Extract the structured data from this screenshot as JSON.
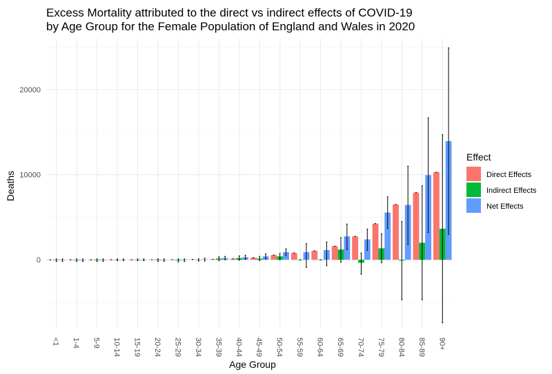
{
  "chart_data": {
    "type": "bar",
    "title_lines": [
      "Excess Mortality attributed to the direct vs indirect effects of COVID-19",
      "by Age Group for the Female Population of England and Wales in 2020"
    ],
    "xlabel": "Age Group",
    "ylabel": "Deaths",
    "ylim": [
      -8000,
      26000
    ],
    "yticks": [
      0,
      10000,
      20000
    ],
    "grid": true,
    "legend_title": "Effect",
    "legend_position": "right",
    "categories": [
      "<1",
      "1-4",
      "5-9",
      "10-14",
      "15-19",
      "20-24",
      "25-29",
      "30-34",
      "35-39",
      "40-44",
      "45-49",
      "50-54",
      "55-59",
      "60-64",
      "65-69",
      "70-74",
      "75-79",
      "80-84",
      "85-89",
      "90+"
    ],
    "series": [
      {
        "name": "Direct Effects",
        "color": "#F8766D",
        "values": [
          0,
          0,
          0,
          0,
          3,
          10,
          20,
          40,
          60,
          120,
          250,
          550,
          800,
          1050,
          1600,
          2750,
          4250,
          6500,
          7900,
          10300
        ],
        "error_low": [
          0,
          0,
          0,
          0,
          3,
          10,
          20,
          40,
          60,
          120,
          250,
          550,
          800,
          1050,
          1600,
          2750,
          4250,
          6500,
          7900,
          10300
        ],
        "error_high": [
          0,
          0,
          0,
          0,
          3,
          10,
          20,
          40,
          60,
          120,
          250,
          550,
          800,
          1050,
          1600,
          2750,
          4250,
          6500,
          7900,
          10300
        ]
      },
      {
        "name": "Indirect Effects",
        "color": "#00BA38",
        "values": [
          -50,
          -60,
          -70,
          0,
          0,
          -60,
          -80,
          0,
          150,
          200,
          150,
          400,
          0,
          0,
          1200,
          -350,
          1350,
          -100,
          2000,
          3650
        ],
        "error_low": [
          -200,
          -200,
          -200,
          -100,
          -100,
          -200,
          -250,
          -150,
          -100,
          -50,
          -100,
          0,
          0,
          0,
          -300,
          -1700,
          -350,
          -4700,
          -4700,
          -7400
        ],
        "error_high": [
          100,
          100,
          100,
          100,
          100,
          100,
          100,
          100,
          350,
          450,
          400,
          750,
          0,
          0,
          2600,
          800,
          3050,
          4500,
          8700,
          14700
        ]
      },
      {
        "name": "Net Effects",
        "color": "#619CFF",
        "values": [
          -50,
          -60,
          -70,
          0,
          0,
          -50,
          -60,
          50,
          200,
          300,
          400,
          900,
          900,
          1150,
          2750,
          2400,
          5550,
          6450,
          9950,
          13950
        ],
        "error_low": [
          -200,
          -200,
          -200,
          -100,
          -100,
          -200,
          -200,
          -150,
          0,
          50,
          100,
          500,
          -900,
          -700,
          1200,
          1100,
          3700,
          1800,
          3200,
          3000
        ],
        "error_high": [
          100,
          100,
          100,
          100,
          100,
          100,
          100,
          200,
          400,
          550,
          700,
          1300,
          1900,
          2100,
          4200,
          3600,
          7400,
          11000,
          16700,
          24900
        ]
      }
    ]
  }
}
